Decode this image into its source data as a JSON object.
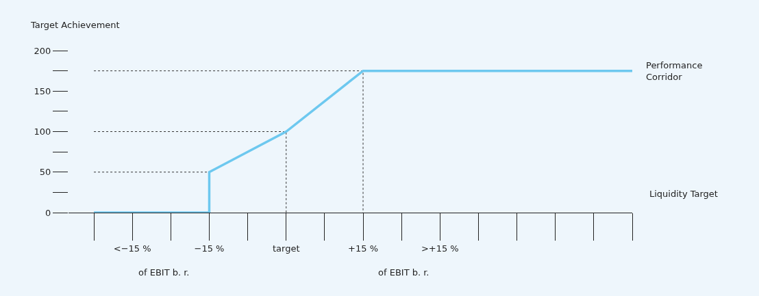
{
  "chart_data": {
    "type": "line",
    "ylabel": "Target Achievement",
    "xlim": [
      -42.45,
      67.5
    ],
    "ylim": [
      0,
      200
    ],
    "xticks": [
      {
        "value": -30,
        "label": "<−15 %"
      },
      {
        "value": -15,
        "label": "−15 %"
      },
      {
        "value": 0,
        "label": "target"
      },
      {
        "value": 15,
        "label": "+15 %"
      },
      {
        "value": 30,
        "label": ">+15 %"
      }
    ],
    "yticks": [
      0,
      50,
      100,
      150,
      200
    ],
    "grid": false,
    "series": [
      {
        "color": "#333333",
        "line_style": "dotted",
        "x": [
          -37.5,
          -15
        ],
        "values": [
          50,
          50
        ]
      },
      {
        "color": "#333333",
        "line_style": "dotted",
        "x": [
          -37.5,
          0,
          0
        ],
        "values": [
          100,
          100,
          0
        ]
      },
      {
        "color": "#333333",
        "line_style": "dotted",
        "x": [
          -37.5,
          15,
          15
        ],
        "values": [
          175,
          175,
          0
        ]
      },
      {
        "color": "#6dc8ef",
        "line_style": "solid",
        "x": [
          -37.5,
          -15,
          -15,
          0,
          15,
          67.5
        ],
        "values": [
          0,
          0,
          50,
          100,
          175,
          175
        ]
      }
    ],
    "annotations": [
      "of EBIT b. r.",
      "of EBIT b. r.",
      {
        "text": "Performance Corridor",
        "x": 67.5,
        "y": 175
      },
      "Liquidity Target"
    ]
  }
}
